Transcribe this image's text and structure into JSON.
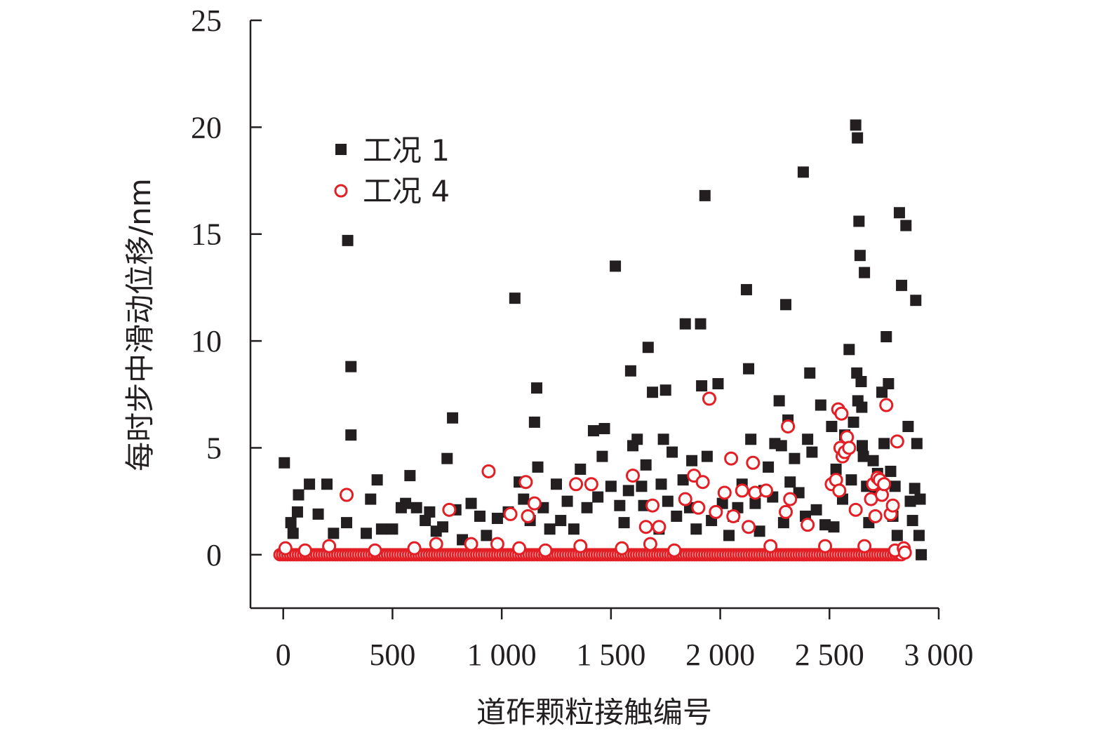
{
  "chart_data": {
    "type": "scatter",
    "xlabel": "道砟颗粒接触编号",
    "ylabel": "每时步中滑动位移/nm",
    "xlim": [
      -150,
      3000
    ],
    "ylim": [
      -2.5,
      25
    ],
    "x_ticks": [
      0,
      500,
      1000,
      1500,
      2000,
      2500,
      3000
    ],
    "x_tick_labels": [
      "0",
      "500",
      "1 000",
      "1 500",
      "2 000",
      "2 500",
      "3 000"
    ],
    "y_ticks": [
      0,
      5,
      10,
      15,
      20,
      25
    ],
    "y_tick_labels": [
      "0",
      "5",
      "10",
      "15",
      "20",
      "25"
    ],
    "grid": false,
    "legend_position": "top-left",
    "series": [
      {
        "name": "工况 1",
        "marker": "filled-square",
        "color": "#231f20",
        "points": [
          [
            5,
            4.3
          ],
          [
            35,
            1.5
          ],
          [
            45,
            1.0
          ],
          [
            65,
            2.0
          ],
          [
            70,
            2.8
          ],
          [
            120,
            3.3
          ],
          [
            160,
            1.9
          ],
          [
            200,
            3.3
          ],
          [
            230,
            1.0
          ],
          [
            290,
            1.5
          ],
          [
            295,
            14.7
          ],
          [
            310,
            8.8
          ],
          [
            310,
            5.6
          ],
          [
            380,
            1.0
          ],
          [
            400,
            2.6
          ],
          [
            430,
            3.5
          ],
          [
            450,
            1.2
          ],
          [
            500,
            1.2
          ],
          [
            540,
            2.2
          ],
          [
            560,
            2.4
          ],
          [
            580,
            3.7
          ],
          [
            610,
            2.2
          ],
          [
            650,
            1.6
          ],
          [
            670,
            2.0
          ],
          [
            700,
            1.1
          ],
          [
            730,
            1.3
          ],
          [
            750,
            4.5
          ],
          [
            775,
            6.4
          ],
          [
            790,
            2.1
          ],
          [
            820,
            0.7
          ],
          [
            860,
            2.4
          ],
          [
            900,
            1.8
          ],
          [
            930,
            0.9
          ],
          [
            980,
            1.7
          ],
          [
            1030,
            2.0
          ],
          [
            1060,
            12.0
          ],
          [
            1080,
            3.4
          ],
          [
            1100,
            2.6
          ],
          [
            1130,
            1.6
          ],
          [
            1150,
            6.2
          ],
          [
            1160,
            7.8
          ],
          [
            1165,
            4.1
          ],
          [
            1190,
            2.2
          ],
          [
            1220,
            1.2
          ],
          [
            1250,
            3.3
          ],
          [
            1270,
            1.6
          ],
          [
            1300,
            2.5
          ],
          [
            1330,
            1.2
          ],
          [
            1360,
            4.0
          ],
          [
            1390,
            2.2
          ],
          [
            1420,
            5.8
          ],
          [
            1440,
            2.7
          ],
          [
            1460,
            4.6
          ],
          [
            1470,
            5.9
          ],
          [
            1500,
            3.2
          ],
          [
            1520,
            13.5
          ],
          [
            1540,
            2.3
          ],
          [
            1560,
            1.5
          ],
          [
            1580,
            3.0
          ],
          [
            1590,
            8.6
          ],
          [
            1600,
            5.1
          ],
          [
            1620,
            5.4
          ],
          [
            1640,
            3.2
          ],
          [
            1650,
            2.3
          ],
          [
            1660,
            4.2
          ],
          [
            1670,
            9.7
          ],
          [
            1690,
            7.6
          ],
          [
            1720,
            1.2
          ],
          [
            1730,
            3.3
          ],
          [
            1740,
            5.4
          ],
          [
            1750,
            7.7
          ],
          [
            1760,
            2.5
          ],
          [
            1780,
            4.8
          ],
          [
            1800,
            1.8
          ],
          [
            1830,
            3.5
          ],
          [
            1840,
            10.8
          ],
          [
            1860,
            2.2
          ],
          [
            1870,
            4.4
          ],
          [
            1890,
            1.2
          ],
          [
            1910,
            10.8
          ],
          [
            1915,
            7.9
          ],
          [
            1930,
            16.8
          ],
          [
            1940,
            4.6
          ],
          [
            1960,
            1.6
          ],
          [
            1990,
            8.0
          ],
          [
            2010,
            2.4
          ],
          [
            2040,
            0.9
          ],
          [
            2060,
            1.8
          ],
          [
            2080,
            2.2
          ],
          [
            2100,
            3.3
          ],
          [
            2120,
            12.4
          ],
          [
            2130,
            8.7
          ],
          [
            2140,
            5.4
          ],
          [
            2160,
            2.4
          ],
          [
            2180,
            1.1
          ],
          [
            2200,
            3.0
          ],
          [
            2220,
            4.1
          ],
          [
            2240,
            2.7
          ],
          [
            2250,
            5.2
          ],
          [
            2270,
            7.2
          ],
          [
            2280,
            5.1
          ],
          [
            2290,
            1.5
          ],
          [
            2300,
            11.7
          ],
          [
            2310,
            6.3
          ],
          [
            2320,
            3.4
          ],
          [
            2340,
            4.5
          ],
          [
            2360,
            2.9
          ],
          [
            2380,
            17.9
          ],
          [
            2390,
            1.8
          ],
          [
            2400,
            5.4
          ],
          [
            2410,
            8.5
          ],
          [
            2420,
            4.8
          ],
          [
            2440,
            2.1
          ],
          [
            2460,
            7.0
          ],
          [
            2480,
            1.4
          ],
          [
            2510,
            6.0
          ],
          [
            2520,
            1.3
          ],
          [
            2530,
            4.0
          ],
          [
            2560,
            2.6
          ],
          [
            2570,
            5.6
          ],
          [
            2590,
            9.6
          ],
          [
            2600,
            3.5
          ],
          [
            2610,
            6.2
          ],
          [
            2620,
            20.1
          ],
          [
            2625,
            8.5
          ],
          [
            2628,
            19.5
          ],
          [
            2630,
            7.2
          ],
          [
            2635,
            15.6
          ],
          [
            2640,
            14.0
          ],
          [
            2645,
            8.1
          ],
          [
            2648,
            6.9
          ],
          [
            2650,
            5.1
          ],
          [
            2655,
            4.6
          ],
          [
            2660,
            13.2
          ],
          [
            2670,
            3.2
          ],
          [
            2680,
            1.5
          ],
          [
            2700,
            4.4
          ],
          [
            2710,
            2.9
          ],
          [
            2720,
            3.8
          ],
          [
            2740,
            7.6
          ],
          [
            2750,
            5.2
          ],
          [
            2760,
            10.2
          ],
          [
            2770,
            8.0
          ],
          [
            2780,
            3.9
          ],
          [
            2790,
            1.8
          ],
          [
            2800,
            3.2
          ],
          [
            2810,
            0.9
          ],
          [
            2820,
            16.0
          ],
          [
            2830,
            12.6
          ],
          [
            2850,
            15.4
          ],
          [
            2860,
            6.0
          ],
          [
            2870,
            2.5
          ],
          [
            2880,
            1.6
          ],
          [
            2890,
            3.1
          ],
          [
            2895,
            11.9
          ],
          [
            2900,
            5.2
          ],
          [
            2910,
            0.9
          ],
          [
            2915,
            2.6
          ],
          [
            2920,
            0.0
          ]
        ]
      },
      {
        "name": "工况 4",
        "marker": "open-circle",
        "color": "#e31e24",
        "points": [
          [
            10,
            0.3
          ],
          [
            100,
            0.2
          ],
          [
            210,
            0.4
          ],
          [
            290,
            2.8
          ],
          [
            420,
            0.2
          ],
          [
            600,
            0.3
          ],
          [
            700,
            0.5
          ],
          [
            760,
            2.1
          ],
          [
            860,
            0.5
          ],
          [
            940,
            3.9
          ],
          [
            980,
            0.5
          ],
          [
            1040,
            1.9
          ],
          [
            1080,
            0.3
          ],
          [
            1110,
            3.4
          ],
          [
            1120,
            1.8
          ],
          [
            1150,
            2.4
          ],
          [
            1200,
            0.2
          ],
          [
            1340,
            3.3
          ],
          [
            1360,
            0.4
          ],
          [
            1410,
            3.3
          ],
          [
            1550,
            0.3
          ],
          [
            1600,
            3.7
          ],
          [
            1660,
            1.3
          ],
          [
            1680,
            0.5
          ],
          [
            1690,
            2.3
          ],
          [
            1720,
            1.3
          ],
          [
            1790,
            0.2
          ],
          [
            1840,
            2.6
          ],
          [
            1880,
            3.7
          ],
          [
            1900,
            2.2
          ],
          [
            1920,
            3.4
          ],
          [
            1950,
            7.3
          ],
          [
            1980,
            2.0
          ],
          [
            2020,
            2.9
          ],
          [
            2050,
            4.5
          ],
          [
            2060,
            1.8
          ],
          [
            2100,
            3.0
          ],
          [
            2130,
            1.3
          ],
          [
            2150,
            4.3
          ],
          [
            2160,
            2.9
          ],
          [
            2210,
            3.0
          ],
          [
            2230,
            0.4
          ],
          [
            2300,
            2.0
          ],
          [
            2310,
            6.0
          ],
          [
            2320,
            2.6
          ],
          [
            2400,
            1.4
          ],
          [
            2480,
            0.4
          ],
          [
            2510,
            3.3
          ],
          [
            2530,
            3.5
          ],
          [
            2540,
            6.8
          ],
          [
            2545,
            3.0
          ],
          [
            2550,
            5.0
          ],
          [
            2555,
            6.6
          ],
          [
            2560,
            4.6
          ],
          [
            2570,
            4.8
          ],
          [
            2580,
            5.5
          ],
          [
            2590,
            5.0
          ],
          [
            2620,
            2.1
          ],
          [
            2660,
            0.4
          ],
          [
            2690,
            2.6
          ],
          [
            2700,
            3.3
          ],
          [
            2710,
            1.8
          ],
          [
            2720,
            3.6
          ],
          [
            2730,
            3.5
          ],
          [
            2740,
            2.8
          ],
          [
            2750,
            3.3
          ],
          [
            2760,
            7.0
          ],
          [
            2780,
            1.9
          ],
          [
            2790,
            2.3
          ],
          [
            2800,
            0.2
          ],
          [
            2810,
            5.3
          ],
          [
            2840,
            0.3
          ],
          [
            2845,
            0.1
          ]
        ]
      }
    ]
  }
}
